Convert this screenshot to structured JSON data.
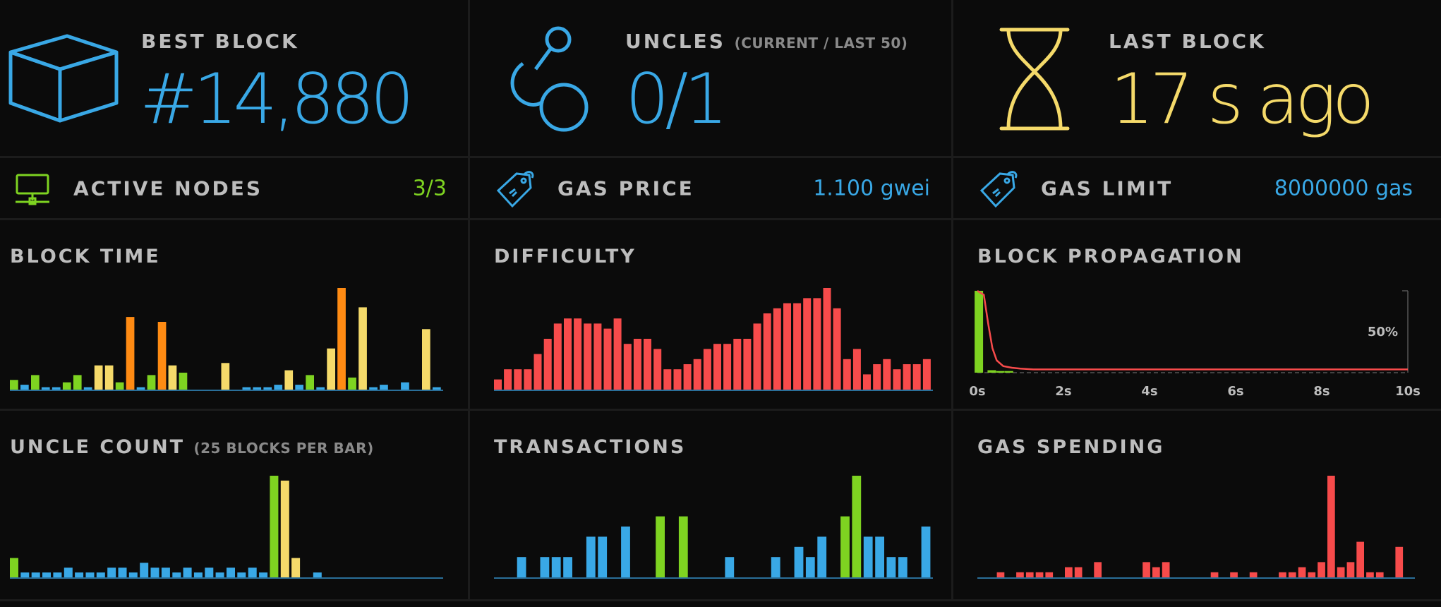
{
  "colors": {
    "blue": "#39a8e6",
    "green": "#7ed321",
    "yellow": "#f5da6a",
    "orange": "#ff8b13",
    "red": "#f74b4b",
    "background": "#0a0a0a"
  },
  "best_block": {
    "title": "BEST BLOCK",
    "value": "#14,880",
    "icon": "cube-icon"
  },
  "uncles": {
    "title": "UNCLES",
    "subtitle": "(CURRENT / LAST 50)",
    "value": "0/1",
    "icon": "uncles-icon"
  },
  "last_block": {
    "title": "LAST BLOCK",
    "value": "17 s ago",
    "icon": "hourglass-icon"
  },
  "active_nodes": {
    "label": "ACTIVE NODES",
    "value": "3/3",
    "icon": "network-icon"
  },
  "gas_price": {
    "label": "GAS PRICE",
    "value": "1.100 gwei",
    "icon": "tag-icon"
  },
  "gas_limit": {
    "label": "GAS LIMIT",
    "value": "8000000 gas",
    "icon": "tag-icon"
  },
  "chart_data": [
    {
      "id": "block_time",
      "type": "bar",
      "title": "BLOCK TIME",
      "values": [
        2,
        1,
        3,
        0.5,
        0.5,
        1.5,
        3,
        0.5,
        5,
        5,
        1.5,
        15,
        0.5,
        3,
        14,
        5,
        3.5,
        0,
        0,
        0,
        5.5,
        0,
        0.5,
        0.5,
        0.5,
        1,
        4,
        1,
        3,
        0.5,
        8.5,
        21,
        2.5,
        17,
        0.5,
        1,
        0,
        1.5,
        0,
        12.5,
        0.5
      ],
      "colors": [
        "g",
        "b",
        "g",
        "b",
        "b",
        "g",
        "g",
        "b",
        "y",
        "y",
        "g",
        "o",
        "b",
        "g",
        "o",
        "y",
        "g",
        "b",
        "b",
        "b",
        "y",
        "b",
        "b",
        "b",
        "b",
        "b",
        "y",
        "b",
        "g",
        "b",
        "y",
        "o",
        "g",
        "y",
        "b",
        "b",
        "b",
        "b",
        "b",
        "y",
        "b"
      ]
    },
    {
      "id": "difficulty",
      "type": "bar",
      "values": [
        2,
        4,
        4,
        4,
        7,
        10,
        13,
        14,
        14,
        13,
        13,
        12,
        14,
        9,
        10,
        10,
        8,
        4,
        4,
        5,
        6,
        8,
        9,
        9,
        10,
        10,
        13,
        15,
        16,
        17,
        17,
        18,
        18,
        20,
        16,
        6,
        8,
        3,
        5,
        6,
        4,
        5,
        5,
        6
      ],
      "title": "DIFFICULTY"
    },
    {
      "id": "block_propagation",
      "type": "bar",
      "title": "BLOCK PROPAGATION",
      "x_tick_labels": [
        "0s",
        "2s",
        "4s",
        "6s",
        "8s",
        "10s"
      ],
      "y_tick_label": "50%",
      "xlim": [
        0,
        10
      ],
      "ylim": [
        0,
        100
      ],
      "bars": [
        {
          "x": 0.1,
          "y": 100
        },
        {
          "x": 0.4,
          "y": 3
        },
        {
          "x": 0.6,
          "y": 2
        },
        {
          "x": 0.8,
          "y": 2
        }
      ],
      "line": [
        [
          0,
          100
        ],
        [
          0.15,
          95
        ],
        [
          0.25,
          60
        ],
        [
          0.35,
          30
        ],
        [
          0.45,
          15
        ],
        [
          0.6,
          8
        ],
        [
          0.8,
          6
        ],
        [
          1.0,
          5
        ],
        [
          1.3,
          4
        ],
        [
          2,
          4
        ],
        [
          4,
          4
        ],
        [
          6,
          4
        ],
        [
          8,
          4
        ],
        [
          10,
          4
        ]
      ]
    },
    {
      "id": "uncle_count",
      "type": "bar",
      "title": "UNCLE COUNT",
      "subtitle": "(25 BLOCKS PER BAR)",
      "values": [
        4,
        1,
        1,
        1,
        1,
        2,
        1,
        1,
        1,
        2,
        2,
        1,
        3,
        2,
        2,
        1,
        2,
        1,
        2,
        1,
        2,
        1,
        2,
        1,
        21,
        20,
        4,
        0,
        1,
        0,
        0,
        0,
        0,
        0,
        0,
        0,
        0,
        0,
        0,
        0
      ],
      "colors": [
        "g",
        "b",
        "b",
        "b",
        "b",
        "b",
        "b",
        "b",
        "b",
        "b",
        "b",
        "b",
        "b",
        "b",
        "b",
        "b",
        "b",
        "b",
        "b",
        "b",
        "b",
        "b",
        "b",
        "b",
        "g",
        "y",
        "y",
        "g",
        "b",
        "b",
        "b",
        "b",
        "b",
        "b",
        "b",
        "b",
        "b",
        "b",
        "b",
        "b"
      ]
    },
    {
      "id": "transactions",
      "type": "bar",
      "title": "TRANSACTIONS",
      "values": [
        0,
        0,
        4,
        0,
        4,
        4,
        4,
        0,
        8,
        8,
        0,
        10,
        0,
        0,
        12,
        0,
        12,
        0,
        0,
        0,
        4,
        0,
        0,
        0,
        4,
        0,
        6,
        4,
        8,
        0,
        12,
        20,
        8,
        8,
        4,
        4,
        0,
        10
      ],
      "colors": [
        "b",
        "b",
        "b",
        "b",
        "b",
        "b",
        "b",
        "b",
        "b",
        "b",
        "b",
        "b",
        "b",
        "b",
        "g",
        "b",
        "g",
        "b",
        "b",
        "b",
        "b",
        "b",
        "b",
        "b",
        "b",
        "b",
        "b",
        "b",
        "b",
        "b",
        "g",
        "g",
        "b",
        "b",
        "b",
        "b",
        "b",
        "b"
      ]
    },
    {
      "id": "gas_spending",
      "type": "bar",
      "title": "GAS SPENDING",
      "values": [
        0,
        0,
        1,
        0,
        1,
        1,
        1,
        1,
        0,
        2,
        2,
        0,
        3,
        0,
        0,
        0,
        0,
        3,
        2,
        3,
        0,
        0,
        0,
        0,
        1,
        0,
        1,
        0,
        1,
        0,
        0,
        1,
        1,
        2,
        1,
        3,
        20,
        2,
        3,
        7,
        1,
        1,
        0,
        6,
        0
      ]
    }
  ]
}
